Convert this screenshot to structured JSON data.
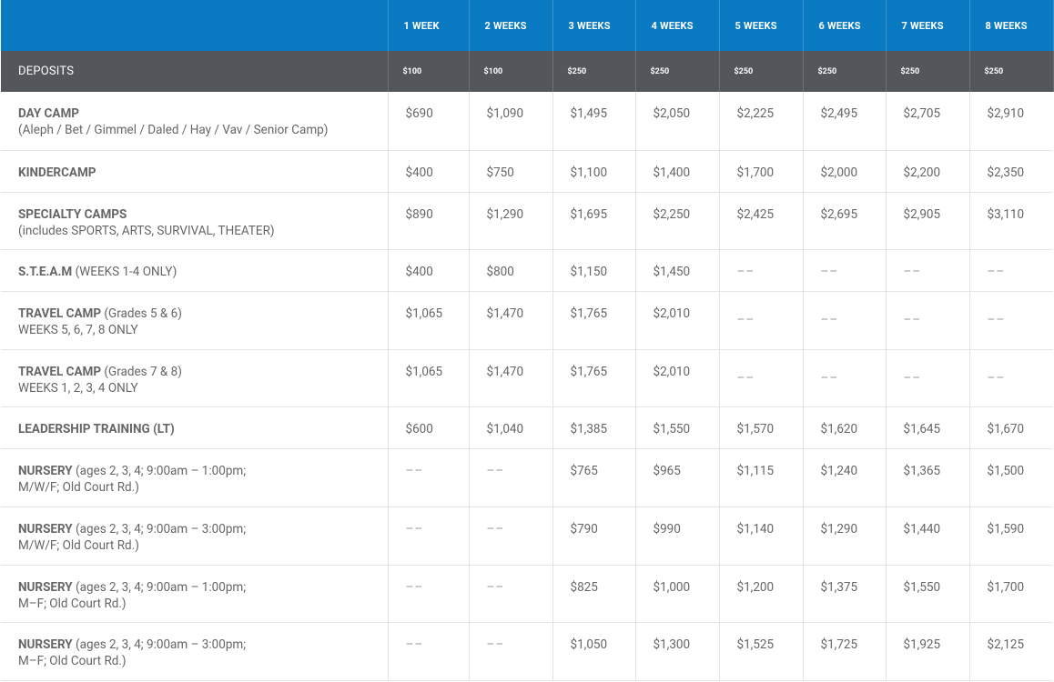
{
  "columns": [
    "1 WEEK",
    "2 WEEKS",
    "3 WEEKS",
    "4 WEEKS",
    "5 WEEKS",
    "6 WEEKS",
    "7 WEEKS",
    "8 WEEKS"
  ],
  "deposits": {
    "label": "DEPOSITS",
    "values": [
      "$100",
      "$100",
      "$250",
      "$250",
      "$250",
      "$250",
      "$250",
      "$250"
    ]
  },
  "rows": [
    {
      "title": "DAY CAMP",
      "suffix": "",
      "sub": "(Aleph / Bet / Gimmel / Daled / Hay / Vav / Senior Camp)",
      "prices": [
        "$690",
        "$1,090",
        "$1,495",
        "$2,050",
        "$2,225",
        "$2,495",
        "$2,705",
        "$2,910"
      ],
      "height": 64
    },
    {
      "title": "KINDERCAMP",
      "suffix": "",
      "sub": "",
      "prices": [
        "$400",
        "$750",
        "$1,100",
        "$1,400",
        "$1,700",
        "$2,000",
        "$2,200",
        "$2,350"
      ],
      "height": 46
    },
    {
      "title": "SPECIALTY CAMPS",
      "suffix": "",
      "sub": "(includes SPORTS, ARTS, SURVIVAL, THEATER)",
      "prices": [
        "$890",
        "$1,290",
        "$1,695",
        "$2,250",
        "$2,425",
        "$2,695",
        "$2,905",
        "$3,110"
      ],
      "height": 63
    },
    {
      "title": "S.T.E.A.M",
      "suffix": " (WEEKS 1-4 ONLY)",
      "sub": "",
      "prices": [
        "$400",
        "$800",
        "$1,150",
        "$1,450",
        "––",
        "––",
        "––",
        "––"
      ],
      "height": 46
    },
    {
      "title": "TRAVEL CAMP",
      "suffix": " (Grades 5 & 6)",
      "sub": "WEEKS 5, 6, 7, 8 ONLY",
      "prices": [
        "$1,065",
        "$1,470",
        "$1,765",
        "$2,010",
        "––",
        "––",
        "––",
        "––"
      ],
      "height": 64,
      "dashMid": true
    },
    {
      "title": "TRAVEL CAMP",
      "suffix": " (Grades 7 & 8)",
      "sub": "WEEKS 1, 2, 3, 4 ONLY",
      "prices": [
        "$1,065",
        "$1,470",
        "$1,765",
        "$2,010",
        "––",
        "––",
        "––",
        "––"
      ],
      "height": 63,
      "dashMid": true
    },
    {
      "title": "LEADERSHIP TRAINING (LT)",
      "suffix": "",
      "sub": "",
      "prices": [
        "$600",
        "$1,040",
        "$1,385",
        "$1,550",
        "$1,570",
        "$1,620",
        "$1,645",
        "$1,670"
      ],
      "height": 46
    },
    {
      "title": "NURSERY",
      "suffix": " (ages 2, 3, 4; 9:00am – 1:00pm;",
      "sub": "M/W/F; Old Court Rd.)",
      "prices": [
        "––",
        "––",
        "$765",
        "$965",
        "$1,115",
        "$1,240",
        "$1,365",
        "$1,500"
      ],
      "height": 64
    },
    {
      "title": "NURSERY",
      "suffix": " (ages 2, 3, 4; 9:00am – 3:00pm;",
      "sub": "M/W/F; Old Court Rd.)",
      "prices": [
        "––",
        "––",
        "$790",
        "$990",
        "$1,140",
        "$1,290",
        "$1,440",
        "$1,590"
      ],
      "height": 64
    },
    {
      "title": "NURSERY",
      "suffix": " (ages 2, 3, 4; 9:00am – 1:00pm;",
      "sub": "M–F; Old Court Rd.)",
      "prices": [
        "––",
        "––",
        "$825",
        "$1,000",
        "$1,200",
        "$1,375",
        "$1,550",
        "$1,700"
      ],
      "height": 63
    },
    {
      "title": "NURSERY",
      "suffix": " (ages 2, 3, 4; 9:00am – 3:00pm;",
      "sub": "M–F; Old Court Rd.)",
      "prices": [
        "––",
        "––",
        "$1,050",
        "$1,300",
        "$1,525",
        "$1,725",
        "$1,925",
        "$2,125"
      ],
      "height": 64
    }
  ]
}
